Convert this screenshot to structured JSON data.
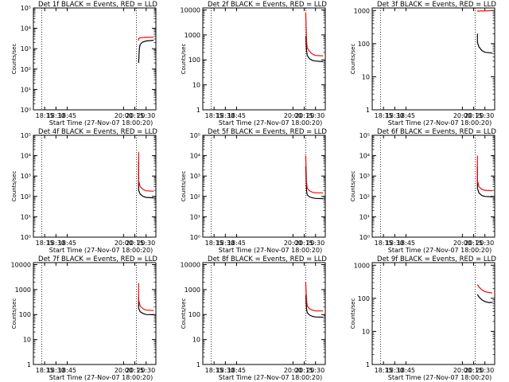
{
  "chart_data": [
    {
      "type": "line",
      "title": "Det 1f BLACK = Events, RED = LLD",
      "xlabel": "Start Time (27-Nov-07 18:00:20)",
      "ylabel": "Counts/sec",
      "scale": "log",
      "yticks": [
        "10⁰",
        "10¹",
        "10²",
        "10³",
        "10⁴",
        "10⁵"
      ],
      "ylim": [
        1,
        100000
      ],
      "xlim": [
        "18:00",
        "20:43"
      ],
      "xticks": [
        "18:15",
        "18:30",
        "18:45",
        "20:00",
        "20:15",
        "20:30"
      ],
      "vlines": [
        "18:11",
        "20:17",
        "20:43"
      ],
      "series": [
        {
          "color": "#000000",
          "values": [
            [
              20.2,
              200
            ],
            [
              20.21,
              1000
            ],
            [
              20.22,
              1600
            ],
            [
              20.25,
              2100
            ],
            [
              20.3,
              2400
            ],
            [
              20.35,
              2500
            ],
            [
              20.4,
              2600
            ]
          ]
        },
        {
          "color": "#ff0000",
          "values": [
            [
              20.2,
              2500
            ],
            [
              20.205,
              3200
            ],
            [
              20.23,
              3500
            ],
            [
              20.3,
              3600
            ],
            [
              20.4,
              3700
            ]
          ]
        }
      ]
    },
    {
      "type": "line",
      "title": "Det 2f BLACK = Events, RED = LLD",
      "xlabel": "Start Time (27-Nov-07 18:00:20)",
      "ylabel": "Counts/sec",
      "scale": "log",
      "yticks": [
        "1",
        "10",
        "100",
        "1000",
        "10000"
      ],
      "ylim": [
        1,
        12000
      ],
      "xlim": [
        "18:00",
        "20:43"
      ],
      "xticks": [
        "18:15",
        "18:30",
        "18:45",
        "20:00",
        "20:15",
        "20:30"
      ],
      "vlines": [
        "18:11",
        "20:17",
        "20:43"
      ],
      "series": [
        {
          "color": "#000000",
          "values": [
            [
              20.17,
              900
            ],
            [
              20.175,
              250
            ],
            [
              20.19,
              150
            ],
            [
              20.22,
              110
            ],
            [
              20.26,
              95
            ],
            [
              20.3,
              90
            ],
            [
              20.4,
              85
            ]
          ]
        },
        {
          "color": "#ff0000",
          "values": [
            [
              20.17,
              8000
            ],
            [
              20.175,
              600
            ],
            [
              20.19,
              300
            ],
            [
              20.22,
              220
            ],
            [
              20.26,
              170
            ],
            [
              20.3,
              150
            ],
            [
              20.4,
              145
            ]
          ]
        }
      ]
    },
    {
      "type": "line",
      "title": "Det 3f BLACK = Events, RED = LLD",
      "xlabel": "Start Time (27-Nov-07 18:00:20)",
      "ylabel": "Counts/sec",
      "scale": "log",
      "yticks": [
        "1",
        "10",
        "100",
        "1000"
      ],
      "ylim": [
        1,
        1200
      ],
      "xlim": [
        "18:00",
        "20:43"
      ],
      "xticks": [
        "18:15",
        "18:30",
        "18:45",
        "20:00",
        "20:15",
        "20:30"
      ],
      "vlines": [
        "18:11",
        "20:17",
        "20:43"
      ],
      "series": [
        {
          "color": "#000000",
          "values": [
            [
              20.2,
              200
            ],
            [
              20.205,
              110
            ],
            [
              20.22,
              80
            ],
            [
              20.26,
              62
            ],
            [
              20.3,
              55
            ],
            [
              20.4,
              52
            ]
          ]
        },
        {
          "color": "#ff0000",
          "values": [
            [
              20.2,
              1000
            ],
            [
              20.21,
              950
            ],
            [
              20.25,
              980
            ],
            [
              20.3,
              970
            ],
            [
              20.4,
              1000
            ]
          ]
        }
      ]
    },
    {
      "type": "line",
      "title": "Det 4f BLACK = Events, RED = LLD",
      "xlabel": "Start Time (27-Nov-07 18:00:20)",
      "ylabel": "Counts/sec",
      "scale": "log",
      "yticks": [
        "10⁰",
        "10¹",
        "10²",
        "10³",
        "10⁴",
        "10⁵"
      ],
      "ylim": [
        1,
        100000
      ],
      "xlim": [
        "18:00",
        "20:43"
      ],
      "xticks": [
        "18:15",
        "18:30",
        "18:45",
        "20:00",
        "20:15",
        "20:30"
      ],
      "vlines": [
        "18:11",
        "20:17",
        "20:43"
      ],
      "series": [
        {
          "color": "#000000",
          "values": [
            [
              20.2,
              5000
            ],
            [
              20.205,
              200
            ],
            [
              20.22,
              130
            ],
            [
              20.26,
              100
            ],
            [
              20.3,
              90
            ],
            [
              20.4,
              85
            ]
          ]
        },
        {
          "color": "#ff0000",
          "values": [
            [
              20.2,
              15000
            ],
            [
              20.205,
              600
            ],
            [
              20.22,
              300
            ],
            [
              20.26,
              220
            ],
            [
              20.3,
              190
            ],
            [
              20.4,
              180
            ]
          ]
        }
      ]
    },
    {
      "type": "line",
      "title": "Det 5f BLACK = Events, RED = LLD",
      "xlabel": "Start Time (27-Nov-07 18:00:20)",
      "ylabel": "Counts/sec",
      "scale": "log",
      "yticks": [
        "10⁰",
        "10¹",
        "10²",
        "10³",
        "10⁴",
        "10⁵"
      ],
      "ylim": [
        1,
        100000
      ],
      "xlim": [
        "18:00",
        "20:43"
      ],
      "xticks": [
        "18:15",
        "18:30",
        "18:45",
        "20:00",
        "20:15",
        "20:30"
      ],
      "vlines": [
        "18:11",
        "20:17",
        "20:43"
      ],
      "series": [
        {
          "color": "#000000",
          "values": [
            [
              20.17,
              3000
            ],
            [
              20.175,
              200
            ],
            [
              20.19,
              120
            ],
            [
              20.22,
              95
            ],
            [
              20.26,
              85
            ],
            [
              20.3,
              80
            ],
            [
              20.4,
              78
            ]
          ]
        },
        {
          "color": "#ff0000",
          "values": [
            [
              20.17,
              10000
            ],
            [
              20.175,
              500
            ],
            [
              20.19,
              250
            ],
            [
              20.22,
              190
            ],
            [
              20.26,
              160
            ],
            [
              20.3,
              150
            ],
            [
              20.4,
              150
            ]
          ]
        }
      ]
    },
    {
      "type": "line",
      "title": "Det 6f BLACK = Events, RED = LLD",
      "xlabel": "Start Time (27-Nov-07 18:00:20)",
      "ylabel": "Counts/sec",
      "scale": "log",
      "yticks": [
        "10⁰",
        "10¹",
        "10²",
        "10³",
        "10⁴",
        "10⁵"
      ],
      "ylim": [
        1,
        100000
      ],
      "xlim": [
        "18:00",
        "20:43"
      ],
      "xticks": [
        "18:15",
        "18:30",
        "18:45",
        "20:00",
        "20:15",
        "20:30"
      ],
      "vlines": [
        "18:11",
        "20:17",
        "20:43"
      ],
      "series": [
        {
          "color": "#000000",
          "values": [
            [
              20.2,
              3000
            ],
            [
              20.205,
              250
            ],
            [
              20.22,
              150
            ],
            [
              20.26,
              110
            ],
            [
              20.3,
              100
            ],
            [
              20.4,
              95
            ]
          ]
        },
        {
          "color": "#ff0000",
          "values": [
            [
              20.2,
              10000
            ],
            [
              20.205,
              600
            ],
            [
              20.22,
              300
            ],
            [
              20.26,
              220
            ],
            [
              20.3,
              200
            ],
            [
              20.4,
              190
            ]
          ]
        }
      ]
    },
    {
      "type": "line",
      "title": "Det 7f BLACK = Events, RED = LLD",
      "xlabel": "Start Time (27-Nov-07 18:00:20)",
      "ylabel": "Counts/sec",
      "scale": "log",
      "yticks": [
        "1",
        "10",
        "100",
        "1000",
        "10000"
      ],
      "ylim": [
        1,
        12000
      ],
      "xlim": [
        "18:00",
        "20:43"
      ],
      "xticks": [
        "18:15",
        "18:30",
        "18:45",
        "20:00",
        "20:15",
        "20:30"
      ],
      "vlines": [
        "18:11",
        "20:17",
        "20:43"
      ],
      "series": [
        {
          "color": "#000000",
          "values": [
            [
              20.2,
              500
            ],
            [
              20.205,
              180
            ],
            [
              20.22,
              130
            ],
            [
              20.26,
              110
            ],
            [
              20.3,
              100
            ],
            [
              20.4,
              98
            ]
          ]
        },
        {
          "color": "#ff0000",
          "values": [
            [
              20.2,
              1800
            ],
            [
              20.205,
              400
            ],
            [
              20.22,
              220
            ],
            [
              20.26,
              170
            ],
            [
              20.3,
              150
            ],
            [
              20.4,
              145
            ]
          ]
        }
      ]
    },
    {
      "type": "line",
      "title": "Det 8f BLACK = Events, RED = LLD",
      "xlabel": "Start Time (27-Nov-07 18:00:20)",
      "ylabel": "Counts/sec",
      "scale": "log",
      "yticks": [
        "1",
        "10",
        "100",
        "1000",
        "10000"
      ],
      "ylim": [
        1,
        12000
      ],
      "xlim": [
        "18:00",
        "20:43"
      ],
      "xticks": [
        "18:15",
        "18:30",
        "18:45",
        "20:00",
        "20:15",
        "20:30"
      ],
      "vlines": [
        "18:11",
        "20:17",
        "20:43"
      ],
      "series": [
        {
          "color": "#000000",
          "values": [
            [
              20.17,
              600
            ],
            [
              20.175,
              170
            ],
            [
              20.19,
              120
            ],
            [
              20.22,
              95
            ],
            [
              20.26,
              85
            ],
            [
              20.3,
              80
            ],
            [
              20.4,
              78
            ]
          ]
        },
        {
          "color": "#ff0000",
          "values": [
            [
              20.17,
              2000
            ],
            [
              20.175,
              400
            ],
            [
              20.19,
              220
            ],
            [
              20.22,
              170
            ],
            [
              20.26,
              150
            ],
            [
              20.3,
              140
            ],
            [
              20.4,
              140
            ]
          ]
        }
      ]
    },
    {
      "type": "line",
      "title": "Det 9f BLACK = Events, RED = LLD",
      "xlabel": "Start Time (27-Nov-07 18:00:20)",
      "ylabel": "Counts/sec",
      "scale": "log",
      "yticks": [
        "1",
        "10",
        "100",
        "1000"
      ],
      "ylim": [
        1,
        1200
      ],
      "xlim": [
        "18:00",
        "20:43"
      ],
      "xticks": [
        "18:15",
        "18:30",
        "18:45",
        "20:00",
        "20:15",
        "20:30"
      ],
      "vlines": [
        "18:11",
        "20:17",
        "20:43"
      ],
      "series": [
        {
          "color": "#000000",
          "values": [
            [
              20.2,
              130
            ],
            [
              20.22,
              110
            ],
            [
              20.26,
              90
            ],
            [
              20.3,
              80
            ],
            [
              20.35,
              75
            ],
            [
              20.4,
              75
            ]
          ]
        },
        {
          "color": "#ff0000",
          "values": [
            [
              20.2,
              260
            ],
            [
              20.22,
              220
            ],
            [
              20.26,
              180
            ],
            [
              20.3,
              160
            ],
            [
              20.35,
              150
            ],
            [
              20.4,
              145
            ]
          ]
        }
      ]
    }
  ]
}
